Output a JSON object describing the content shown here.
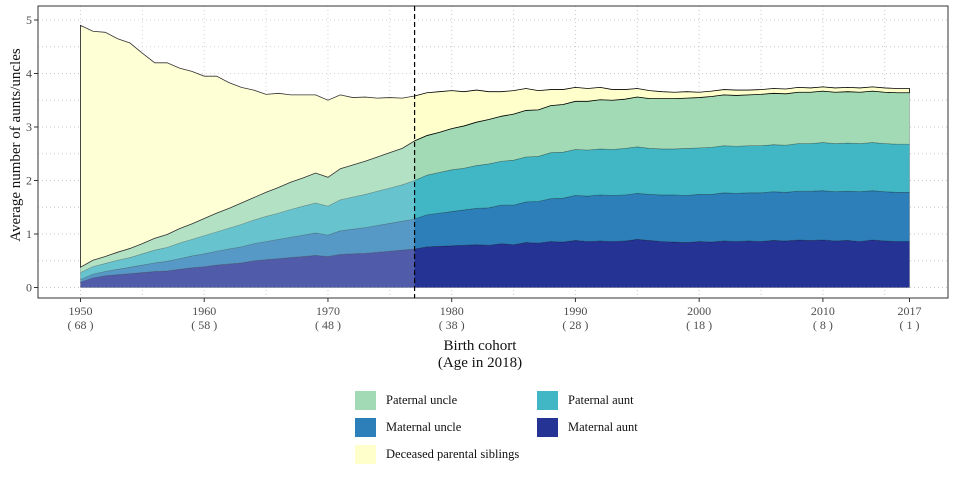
{
  "chart_data": {
    "type": "area",
    "stacked": true,
    "xlabel_line1": "Birth cohort",
    "xlabel_line2": "(Age in 2018)",
    "ylabel": "Average number of aunts/uncles",
    "xlim": [
      1950,
      2017
    ],
    "ylim": [
      0,
      5
    ],
    "grid": true,
    "grid_style": "dotted",
    "reference_line_x": 1977,
    "reference_line_style": "dashed",
    "x_ticks": [
      {
        "value": 1950,
        "label": "1950",
        "sub": "( 68 )"
      },
      {
        "value": 1960,
        "label": "1960",
        "sub": "( 58 )"
      },
      {
        "value": 1970,
        "label": "1970",
        "sub": "( 48 )"
      },
      {
        "value": 1980,
        "label": "1980",
        "sub": "( 38 )"
      },
      {
        "value": 1990,
        "label": "1990",
        "sub": "( 28 )"
      },
      {
        "value": 2000,
        "label": "2000",
        "sub": "( 18 )"
      },
      {
        "value": 2010,
        "label": "2010",
        "sub": "( 8 )"
      },
      {
        "value": 2017,
        "label": "2017",
        "sub": "( 1 )"
      }
    ],
    "y_ticks": [
      "0",
      "1",
      "2",
      "3",
      "4",
      "5"
    ],
    "legend_placement": "bottom",
    "x": [
      1950,
      1951,
      1952,
      1953,
      1954,
      1955,
      1956,
      1957,
      1958,
      1959,
      1960,
      1961,
      1962,
      1963,
      1964,
      1965,
      1966,
      1967,
      1968,
      1969,
      1970,
      1971,
      1972,
      1973,
      1974,
      1975,
      1976,
      1977,
      1978,
      1979,
      1980,
      1981,
      1982,
      1983,
      1984,
      1985,
      1986,
      1987,
      1988,
      1989,
      1990,
      1991,
      1992,
      1993,
      1994,
      1995,
      1996,
      1997,
      1998,
      1999,
      2000,
      2001,
      2002,
      2003,
      2004,
      2005,
      2006,
      2007,
      2008,
      2009,
      2010,
      2011,
      2012,
      2013,
      2014,
      2015,
      2016,
      2017
    ],
    "series": [
      {
        "name": "Maternal aunt",
        "color": "#253494",
        "values": [
          0.1,
          0.18,
          0.22,
          0.24,
          0.26,
          0.28,
          0.3,
          0.31,
          0.34,
          0.37,
          0.39,
          0.42,
          0.44,
          0.46,
          0.5,
          0.52,
          0.54,
          0.56,
          0.58,
          0.6,
          0.58,
          0.62,
          0.63,
          0.64,
          0.66,
          0.68,
          0.7,
          0.72,
          0.76,
          0.77,
          0.78,
          0.79,
          0.8,
          0.79,
          0.82,
          0.8,
          0.84,
          0.83,
          0.86,
          0.85,
          0.88,
          0.86,
          0.87,
          0.86,
          0.87,
          0.9,
          0.88,
          0.86,
          0.85,
          0.84,
          0.86,
          0.85,
          0.87,
          0.86,
          0.87,
          0.86,
          0.88,
          0.87,
          0.89,
          0.88,
          0.89,
          0.87,
          0.88,
          0.86,
          0.89,
          0.87,
          0.86,
          0.86
        ]
      },
      {
        "name": "Maternal uncle",
        "color": "#2c7fb8",
        "values": [
          0.05,
          0.07,
          0.08,
          0.1,
          0.12,
          0.14,
          0.16,
          0.18,
          0.2,
          0.22,
          0.24,
          0.26,
          0.28,
          0.3,
          0.32,
          0.34,
          0.36,
          0.38,
          0.4,
          0.42,
          0.4,
          0.44,
          0.46,
          0.48,
          0.5,
          0.52,
          0.54,
          0.56,
          0.6,
          0.62,
          0.64,
          0.66,
          0.68,
          0.7,
          0.72,
          0.74,
          0.76,
          0.78,
          0.8,
          0.82,
          0.84,
          0.85,
          0.86,
          0.86,
          0.86,
          0.86,
          0.86,
          0.87,
          0.88,
          0.88,
          0.88,
          0.89,
          0.9,
          0.9,
          0.9,
          0.91,
          0.91,
          0.91,
          0.91,
          0.92,
          0.92,
          0.92,
          0.92,
          0.93,
          0.92,
          0.92,
          0.92,
          0.92
        ]
      },
      {
        "name": "Paternal aunt",
        "color": "#41b6c4",
        "values": [
          0.13,
          0.14,
          0.15,
          0.17,
          0.18,
          0.21,
          0.24,
          0.26,
          0.29,
          0.31,
          0.34,
          0.36,
          0.39,
          0.42,
          0.44,
          0.47,
          0.49,
          0.52,
          0.54,
          0.56,
          0.54,
          0.58,
          0.6,
          0.62,
          0.64,
          0.66,
          0.68,
          0.72,
          0.74,
          0.76,
          0.78,
          0.78,
          0.8,
          0.82,
          0.82,
          0.84,
          0.84,
          0.84,
          0.86,
          0.86,
          0.86,
          0.86,
          0.86,
          0.86,
          0.87,
          0.87,
          0.86,
          0.86,
          0.86,
          0.88,
          0.87,
          0.88,
          0.88,
          0.88,
          0.88,
          0.88,
          0.88,
          0.88,
          0.89,
          0.89,
          0.9,
          0.9,
          0.9,
          0.9,
          0.9,
          0.9,
          0.9,
          0.9
        ]
      },
      {
        "name": "Paternal uncle",
        "color": "#a1dab4",
        "values": [
          0.1,
          0.12,
          0.13,
          0.15,
          0.17,
          0.19,
          0.22,
          0.24,
          0.27,
          0.29,
          0.32,
          0.35,
          0.37,
          0.4,
          0.42,
          0.45,
          0.48,
          0.51,
          0.53,
          0.56,
          0.54,
          0.58,
          0.6,
          0.62,
          0.64,
          0.66,
          0.68,
          0.74,
          0.74,
          0.75,
          0.77,
          0.79,
          0.81,
          0.83,
          0.84,
          0.86,
          0.87,
          0.87,
          0.88,
          0.89,
          0.9,
          0.91,
          0.92,
          0.92,
          0.92,
          0.93,
          0.93,
          0.94,
          0.94,
          0.94,
          0.94,
          0.95,
          0.95,
          0.95,
          0.95,
          0.96,
          0.96,
          0.96,
          0.96,
          0.96,
          0.96,
          0.96,
          0.96,
          0.96,
          0.96,
          0.96,
          0.96,
          0.96
        ]
      },
      {
        "name": "Deceased parental siblings",
        "color": "#ffffcc",
        "values": [
          4.52,
          4.28,
          4.19,
          3.99,
          3.84,
          3.56,
          3.28,
          3.21,
          3.0,
          2.85,
          2.66,
          2.56,
          2.35,
          2.16,
          2.01,
          1.83,
          1.76,
          1.63,
          1.55,
          1.46,
          1.44,
          1.38,
          1.26,
          1.2,
          1.1,
          1.03,
          0.94,
          0.84,
          0.8,
          0.76,
          0.71,
          0.64,
          0.6,
          0.52,
          0.46,
          0.44,
          0.41,
          0.36,
          0.3,
          0.28,
          0.26,
          0.24,
          0.23,
          0.2,
          0.18,
          0.16,
          0.15,
          0.13,
          0.12,
          0.12,
          0.1,
          0.1,
          0.1,
          0.1,
          0.09,
          0.09,
          0.09,
          0.09,
          0.09,
          0.08,
          0.08,
          0.08,
          0.08,
          0.08,
          0.08,
          0.08,
          0.08,
          0.08
        ]
      }
    ]
  },
  "legend": [
    {
      "label": "Paternal uncle",
      "color": "#a1dab4"
    },
    {
      "label": "Paternal aunt",
      "color": "#41b6c4"
    },
    {
      "label": "Maternal uncle",
      "color": "#2c7fb8"
    },
    {
      "label": "Maternal aunt",
      "color": "#253494"
    },
    {
      "label": "Deceased parental siblings",
      "color": "#ffffcc"
    }
  ]
}
